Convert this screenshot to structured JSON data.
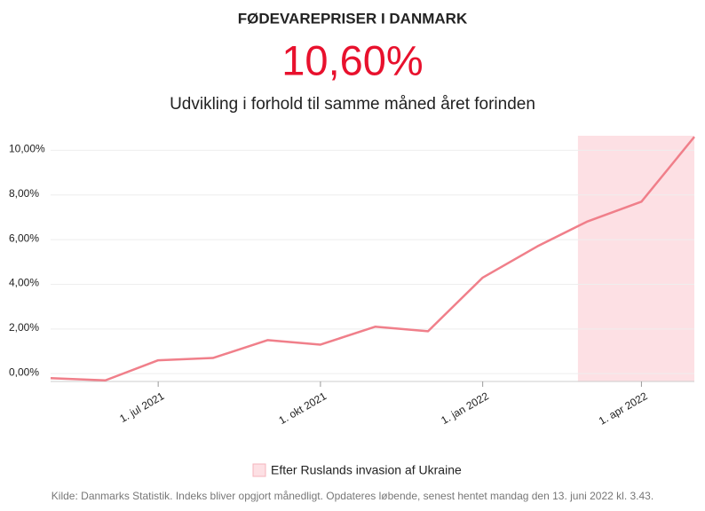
{
  "chart_data": {
    "type": "line",
    "title": "FØDEVAREPRISER I DANMARK",
    "headline": "10,60%",
    "subtitle": "Udvikling i forhold til samme måned året forinden",
    "x": [
      "2021-05-01",
      "2021-06-01",
      "2021-07-01",
      "2021-08-01",
      "2021-09-01",
      "2021-10-01",
      "2021-11-01",
      "2021-12-01",
      "2022-01-01",
      "2022-02-01",
      "2022-03-01",
      "2022-04-01",
      "2022-05-01"
    ],
    "series": [
      {
        "name": "Fødevarepriser",
        "color": "#f07f8a",
        "values": [
          -0.2,
          -0.3,
          0.6,
          0.7,
          1.5,
          1.3,
          2.1,
          1.9,
          4.3,
          5.7,
          6.8,
          7.7,
          10.6
        ]
      }
    ],
    "xlim": [
      "2021-05-01",
      "2022-05-01"
    ],
    "xticks": [
      {
        "value": "2021-07-01",
        "label": "1. jul 2021"
      },
      {
        "value": "2021-10-01",
        "label": "1. okt 2021"
      },
      {
        "value": "2022-01-01",
        "label": "1. jan 2022"
      },
      {
        "value": "2022-04-01",
        "label": "1. apr 2022"
      }
    ],
    "ylim": [
      -0.35,
      10.65
    ],
    "yticks": [
      {
        "value": 0,
        "label": "0,00%"
      },
      {
        "value": 2,
        "label": "2,00%"
      },
      {
        "value": 4,
        "label": "4,00%"
      },
      {
        "value": 6,
        "label": "6,00%"
      },
      {
        "value": 8,
        "label": "8,00%"
      },
      {
        "value": 10,
        "label": "10,00%"
      }
    ],
    "grid": true,
    "highlight": {
      "start": "2022-02-24",
      "end": "2022-05-01",
      "label": "Efter Ruslands invasion af Ukraine",
      "color": "#fde0e4"
    },
    "source": "Kilde: Danmarks Statistik. Indeks bliver opgjort månedligt. Opdateres løbende, senest hentet mandag den 13. juni 2022 kl. 3.43."
  }
}
